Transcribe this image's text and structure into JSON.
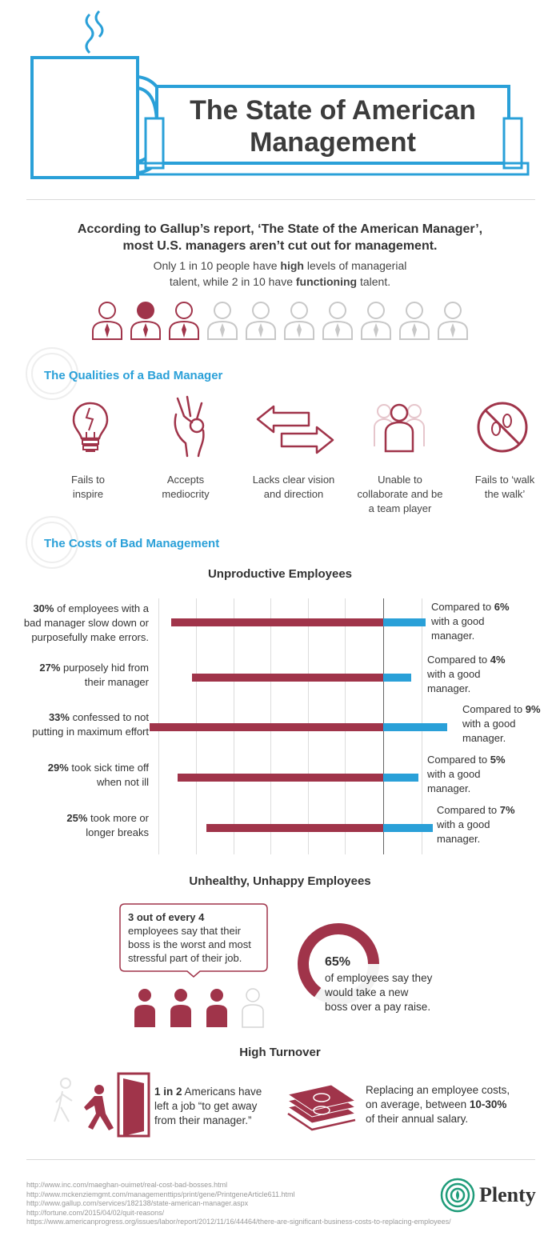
{
  "header": {
    "title_line1": "The State of American",
    "title_line2": "Management"
  },
  "intro": {
    "headline_line1": "According to Gallup’s report, ‘The State of the American Manager’,",
    "headline_line2": "most U.S. managers aren’t cut out for management.",
    "detail_prefix": "Only 1 in 10 people have ",
    "detail_bold1": "high",
    "detail_mid": " levels of managerial",
    "detail_line2_prefix": "talent, while 2 in 10 have ",
    "detail_bold2": "functioning",
    "detail_suffix": " talent."
  },
  "qualities": {
    "heading": "The Qualities of a Bad Manager",
    "items": [
      {
        "line1": "Fails to",
        "line2": "inspire",
        "line3": "",
        "icon": "broken-lightbulb-icon"
      },
      {
        "line1": "Accepts",
        "line2": "mediocrity",
        "line3": "",
        "icon": "ok-hand-icon"
      },
      {
        "line1": "Lacks clear vision",
        "line2": "and direction",
        "line3": "",
        "icon": "opposing-arrows-icon"
      },
      {
        "line1": "Unable to",
        "line2": "collaborate and be",
        "line3": "a team player",
        "icon": "team-icon"
      },
      {
        "line1": "Fails to ‘walk",
        "line2": "the walk’",
        "line3": "",
        "icon": "no-footprints-icon"
      }
    ]
  },
  "costs": {
    "heading": "The Costs of Bad Management",
    "unproductive_heading": "Unproductive Employees"
  },
  "chart_data": {
    "type": "bar",
    "title": "Unproductive Employees",
    "categories": [
      "slow down or make errors",
      "hid from manager",
      "not maximum effort",
      "sick time off",
      "longer breaks"
    ],
    "series": [
      {
        "name": "bad manager",
        "values": [
          30,
          27,
          33,
          29,
          25
        ]
      },
      {
        "name": "good manager",
        "values": [
          6,
          4,
          9,
          5,
          7
        ]
      }
    ],
    "rows": [
      {
        "pct": "30%",
        "text_a": " of employees with a",
        "text_b": "bad manager slow down or",
        "text_c": "purposefully make errors.",
        "cmp_pct": "6%",
        "cmp_b": "with a good",
        "cmp_c": "manager."
      },
      {
        "pct": "27%",
        "text_a": " purposely hid from",
        "text_b": "their manager",
        "text_c": "",
        "cmp_pct": "4%",
        "cmp_b": "with a good",
        "cmp_c": "manager."
      },
      {
        "pct": "33%",
        "text_a": " confessed to not",
        "text_b": "putting in maximum effort",
        "text_c": "",
        "cmp_pct": "9%",
        "cmp_b": "with a good",
        "cmp_c": "manager."
      },
      {
        "pct": "29%",
        "text_a": " took sick time off",
        "text_b": "when not ill",
        "text_c": "",
        "cmp_pct": "5%",
        "cmp_b": "with a good",
        "cmp_c": "manager."
      },
      {
        "pct": "25%",
        "text_a": " took more or",
        "text_b": "longer breaks",
        "text_c": "",
        "cmp_pct": "7%",
        "cmp_b": "with a good",
        "cmp_c": "manager."
      }
    ],
    "compared_to": "Compared to "
  },
  "unhealthy": {
    "heading": "Unhealthy, Unhappy Employees",
    "bubble_bold": "3 out of every 4",
    "bubble_line2": "employees say that their",
    "bubble_line3": "boss is the worst and most",
    "bubble_line4": "stressful part of their job.",
    "donut_value": 0.65,
    "donut_pct": "65%",
    "donut_line1": "of employees say they",
    "donut_line2": "would take a new",
    "donut_line3": "boss over a pay raise."
  },
  "turnover": {
    "heading": "High Turnover",
    "left_bold": "1 in 2",
    "left_line1_rest": " Americans have",
    "left_line2": "left a job “to get away",
    "left_line3": "from their manager.”",
    "right_line1": "Replacing an employee costs,",
    "right_line2_prefix": "on average, between ",
    "right_bold": "10-30%",
    "right_line3": "of their annual salary."
  },
  "sources": [
    "http://www.inc.com/maeghan-ouimet/real-cost-bad-bosses.html",
    "http://www.mckenziemgmt.com/managementtips/print/gene/PrintgeneArticle611.html",
    "http://www.gallup.com/services/182138/state-american-manager.aspx",
    "http://fortune.com/2015/04/02/quit-reasons/",
    "https://www.americanprogress.org/issues/labor/report/2012/11/16/44464/there-are-significant-business-costs-to-replacing-employees/"
  ],
  "brand": {
    "name": "Plenty"
  },
  "colors": {
    "accent_red": "#a0344a",
    "accent_blue": "#2aa0d8",
    "gray_icon": "#c8c8c8"
  }
}
